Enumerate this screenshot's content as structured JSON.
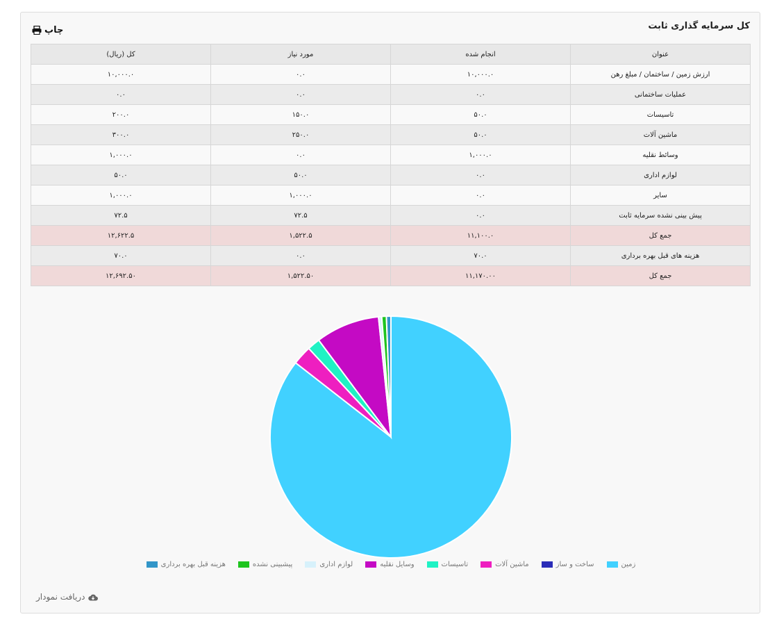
{
  "panel": {
    "title": "کل سرمایه گذاری ثابت",
    "print_label": "چاپ",
    "download_label": "دریافت نمودار"
  },
  "table": {
    "headers": [
      "عنوان",
      "انجام شده",
      "مورد نیاز",
      "کل (ریال)"
    ],
    "rows": [
      {
        "title": "ارزش زمین / ساختمان / مبلغ رهن",
        "done": "۱۰,۰۰۰.۰",
        "needed": "۰.۰",
        "total": "۱۰,۰۰۰.۰",
        "kind": "odd"
      },
      {
        "title": "عملیات ساختمانی",
        "done": "۰.۰",
        "needed": "۰.۰",
        "total": "۰.۰",
        "kind": "even"
      },
      {
        "title": "تاسیسات",
        "done": "۵۰.۰",
        "needed": "۱۵۰.۰",
        "total": "۲۰۰.۰",
        "kind": "odd"
      },
      {
        "title": "ماشین آلات",
        "done": "۵۰.۰",
        "needed": "۲۵۰.۰",
        "total": "۳۰۰.۰",
        "kind": "even"
      },
      {
        "title": "وسائط نقلیه",
        "done": "۱,۰۰۰.۰",
        "needed": "۰.۰",
        "total": "۱,۰۰۰.۰",
        "kind": "odd"
      },
      {
        "title": "لوازم اداری",
        "done": "۰.۰",
        "needed": "۵۰.۰",
        "total": "۵۰.۰",
        "kind": "even"
      },
      {
        "title": "سایر",
        "done": "۰.۰",
        "needed": "۱,۰۰۰.۰",
        "total": "۱,۰۰۰.۰",
        "kind": "odd"
      },
      {
        "title": "پیش بینی نشده سرمایه ثابت",
        "done": "۰.۰",
        "needed": "۷۲.۵",
        "total": "۷۲.۵",
        "kind": "even"
      },
      {
        "title": "جمع کل",
        "done": "۱۱,۱۰۰.۰",
        "needed": "۱,۵۲۲.۵",
        "total": "۱۲,۶۲۲.۵",
        "kind": "total"
      },
      {
        "title": "هزینه های قبل بهره برداری",
        "done": "۷۰.۰",
        "needed": "۰.۰",
        "total": "۷۰.۰",
        "kind": "even"
      },
      {
        "title": "جمع کل",
        "done": "۱۱,۱۷۰.۰۰",
        "needed": "۱,۵۲۲.۵۰",
        "total": "۱۲,۶۹۲.۵۰",
        "kind": "total"
      }
    ]
  },
  "chart_data": {
    "type": "pie",
    "legend_position": "bottom",
    "slices": [
      {
        "name": "زمین",
        "value": 10000,
        "color": "#41d1ff"
      },
      {
        "name": "ساخت و ساز",
        "value": 0,
        "color": "#2b2db8"
      },
      {
        "name": "ماشین آلات",
        "value": 300,
        "color": "#ee1fc0"
      },
      {
        "name": "تاسیسات",
        "value": 200,
        "color": "#1ff2c4"
      },
      {
        "name": "وسایل نقلیه",
        "value": 1000,
        "color": "#c40ac4"
      },
      {
        "name": "لوازم اداری",
        "value": 50,
        "color": "#d7f1fb"
      },
      {
        "name": "پیشبینی نشده",
        "value": 72.5,
        "color": "#1fc41f"
      },
      {
        "name": "هزینه قبل بهره برداری",
        "value": 70,
        "color": "#3296c8"
      }
    ]
  }
}
